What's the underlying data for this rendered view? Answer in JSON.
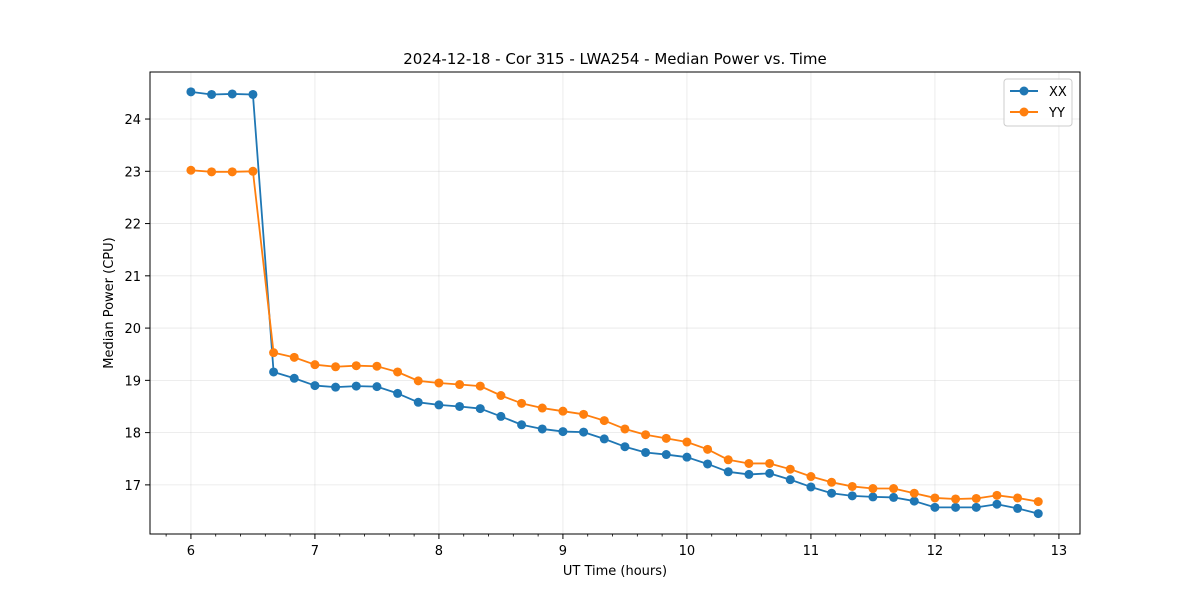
{
  "chart_data": {
    "type": "line",
    "title": "2024-12-18 - Cor 315 - LWA254 - Median Power vs. Time",
    "xlabel": "UT Time (hours)",
    "ylabel": "Median Power (CPU)",
    "xlim": [
      5.67,
      13.17
    ],
    "ylim": [
      16.06,
      24.9
    ],
    "xticks": [
      6,
      7,
      8,
      9,
      10,
      11,
      12,
      13
    ],
    "yticks": [
      17,
      18,
      19,
      20,
      21,
      22,
      23,
      24
    ],
    "grid": true,
    "legend_position": "top-right",
    "x": [
      6.0,
      6.1667,
      6.3333,
      6.5,
      6.6667,
      6.8333,
      7.0,
      7.1667,
      7.3333,
      7.5,
      7.6667,
      7.8333,
      8.0,
      8.1667,
      8.3333,
      8.5,
      8.6667,
      8.8333,
      9.0,
      9.1667,
      9.3333,
      9.5,
      9.6667,
      9.8333,
      10.0,
      10.1667,
      10.3333,
      10.5,
      10.6667,
      10.8333,
      11.0,
      11.1667,
      11.3333,
      11.5,
      11.6667,
      11.8333,
      12.0,
      12.1667,
      12.3333,
      12.5,
      12.6667,
      12.8333
    ],
    "series": [
      {
        "name": "XX",
        "color": "#1f77b4",
        "values": [
          24.52,
          24.47,
          24.48,
          24.47,
          19.16,
          19.04,
          18.9,
          18.87,
          18.89,
          18.88,
          18.75,
          18.58,
          18.53,
          18.5,
          18.46,
          18.31,
          18.15,
          18.07,
          18.02,
          18.01,
          17.88,
          17.73,
          17.62,
          17.58,
          17.53,
          17.4,
          17.25,
          17.2,
          17.22,
          17.1,
          16.96,
          16.84,
          16.79,
          16.77,
          16.76,
          16.69,
          16.57,
          16.57,
          16.57,
          16.63,
          16.55,
          16.45
        ]
      },
      {
        "name": "YY",
        "color": "#ff7f0e",
        "values": [
          23.02,
          22.99,
          22.99,
          23.0,
          19.53,
          19.44,
          19.3,
          19.26,
          19.28,
          19.27,
          19.16,
          18.99,
          18.95,
          18.92,
          18.89,
          18.71,
          18.56,
          18.47,
          18.41,
          18.35,
          18.23,
          18.07,
          17.96,
          17.89,
          17.82,
          17.68,
          17.48,
          17.41,
          17.41,
          17.3,
          17.16,
          17.05,
          16.97,
          16.93,
          16.93,
          16.84,
          16.75,
          16.73,
          16.74,
          16.8,
          16.75,
          16.68
        ]
      }
    ]
  }
}
